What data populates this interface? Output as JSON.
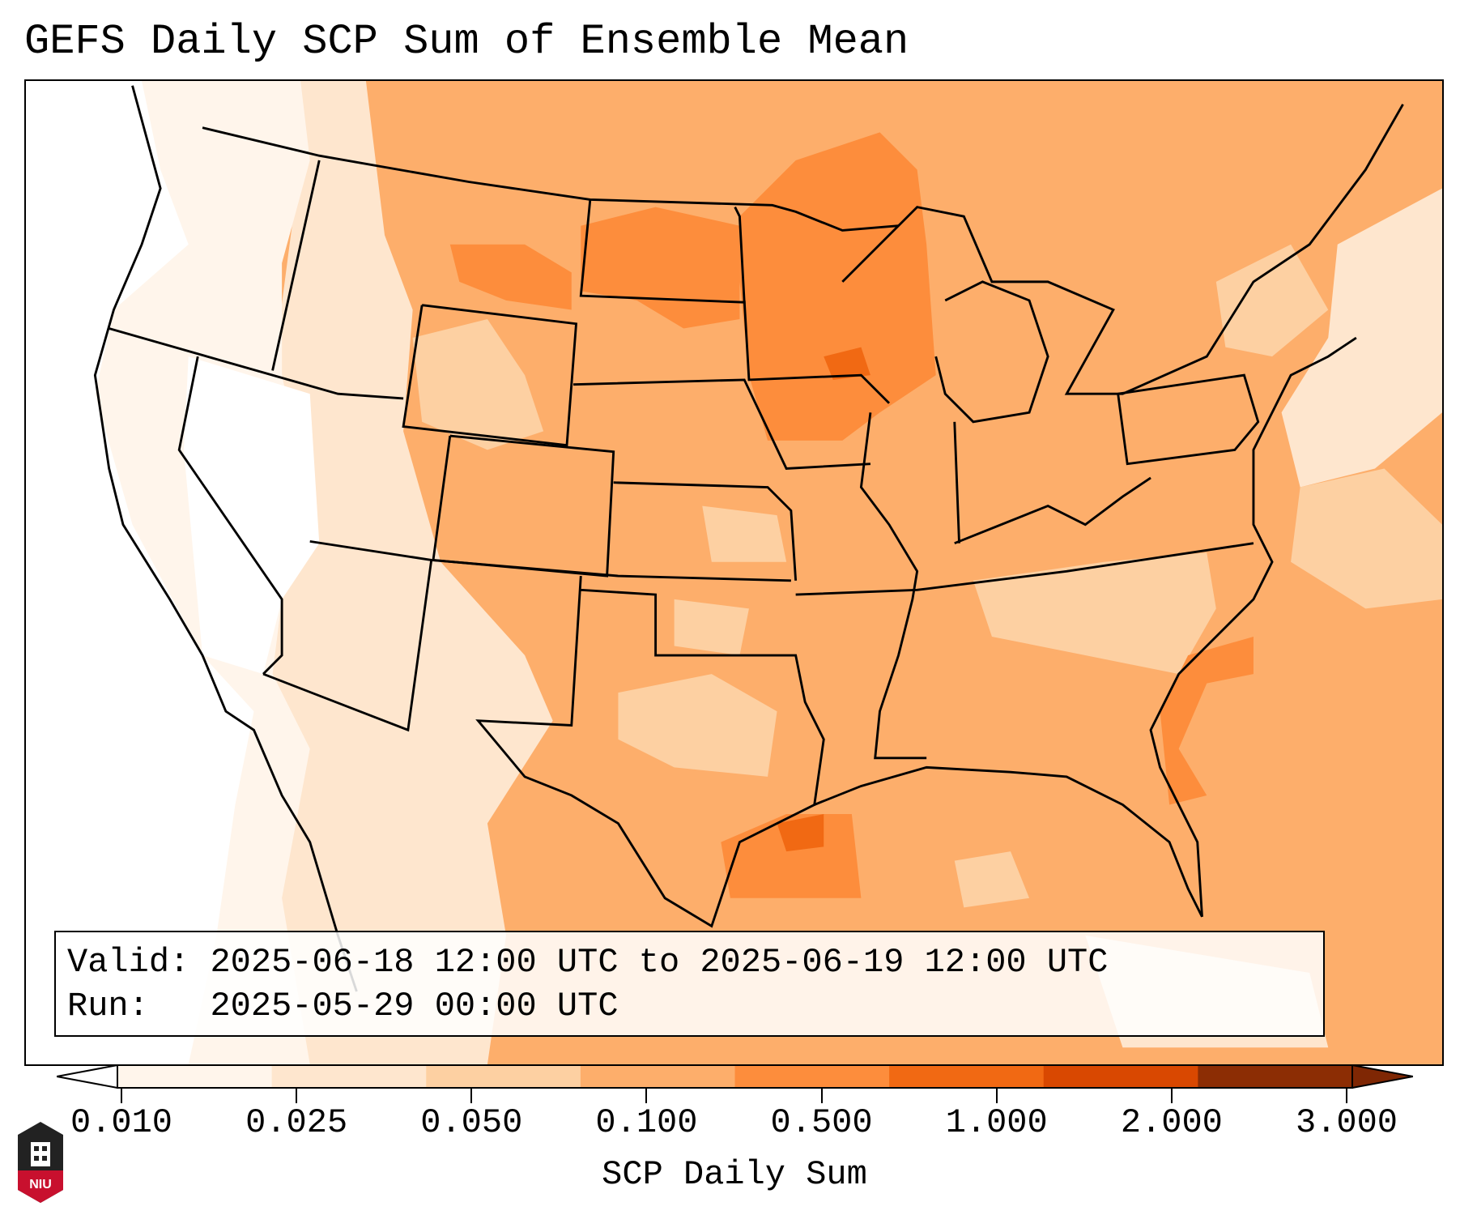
{
  "title": "GEFS Daily SCP Sum of Ensemble Mean",
  "info": {
    "valid_label": "Valid:",
    "valid_value": "2025-06-18 12:00 UTC to 2025-06-19 12:00 UTC",
    "run_label": "Run:",
    "run_value": "2025-05-29 00:00 UTC"
  },
  "colorbar": {
    "label": "SCP Daily Sum",
    "ticks": [
      "0.010",
      "0.025",
      "0.050",
      "0.100",
      "0.500",
      "1.000",
      "2.000",
      "3.000"
    ],
    "colors": [
      "#fff5eb",
      "#fee6ce",
      "#fdd0a2",
      "#fdae6b",
      "#fd8d3c",
      "#f16913",
      "#d94801",
      "#8c2d04"
    ],
    "under_color": "#ffffff",
    "over_color": "#7f2704"
  },
  "logo": {
    "text": "NIU",
    "color": "#c8102e"
  }
}
